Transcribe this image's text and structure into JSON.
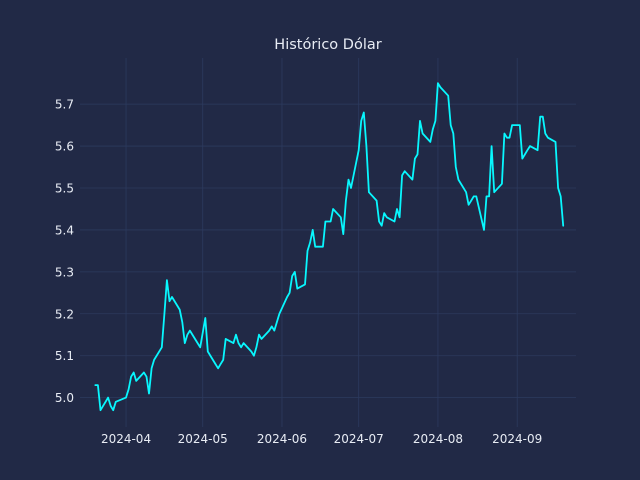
{
  "chart_data": {
    "type": "line",
    "title": "Histórico Dólar",
    "xlabel": "",
    "ylabel": "",
    "grid": true,
    "xlim": [
      "2024-03-14",
      "2024-09-24"
    ],
    "ylim": [
      4.93,
      5.81
    ],
    "x_ticks": [
      "2024-04-01",
      "2024-05-01",
      "2024-06-01",
      "2024-07-01",
      "2024-08-01",
      "2024-09-01"
    ],
    "x_tick_labels": [
      "2024-04",
      "2024-05",
      "2024-06",
      "2024-07",
      "2024-08",
      "2024-09"
    ],
    "y_ticks": [
      5.0,
      5.1,
      5.2,
      5.3,
      5.4,
      5.5,
      5.6,
      5.7
    ],
    "y_tick_labels": [
      "5.0",
      "5.1",
      "5.2",
      "5.3",
      "5.4",
      "5.5",
      "5.6",
      "5.7"
    ],
    "colors": {
      "background": "#212946",
      "line": "#08F7FE",
      "grid": "#2C3A5E",
      "text": "#E8ECF4"
    },
    "series": [
      {
        "x": [
          "2024-03-20",
          "2024-03-21",
          "2024-03-22",
          "2024-03-25",
          "2024-03-26",
          "2024-03-27",
          "2024-03-28",
          "2024-04-01",
          "2024-04-02",
          "2024-04-03",
          "2024-04-04",
          "2024-04-05",
          "2024-04-08",
          "2024-04-09",
          "2024-04-10",
          "2024-04-11",
          "2024-04-12",
          "2024-04-15",
          "2024-04-16",
          "2024-04-17",
          "2024-04-18",
          "2024-04-19",
          "2024-04-22",
          "2024-04-23",
          "2024-04-24",
          "2024-04-25",
          "2024-04-26",
          "2024-04-29",
          "2024-04-30",
          "2024-05-02",
          "2024-05-03",
          "2024-05-06",
          "2024-05-07",
          "2024-05-08",
          "2024-05-09",
          "2024-05-10",
          "2024-05-13",
          "2024-05-14",
          "2024-05-15",
          "2024-05-16",
          "2024-05-17",
          "2024-05-20",
          "2024-05-21",
          "2024-05-22",
          "2024-05-23",
          "2024-05-24",
          "2024-05-27",
          "2024-05-28",
          "2024-05-29",
          "2024-05-31",
          "2024-06-03",
          "2024-06-04",
          "2024-06-05",
          "2024-06-06",
          "2024-06-07",
          "2024-06-10",
          "2024-06-11",
          "2024-06-12",
          "2024-06-13",
          "2024-06-14",
          "2024-06-17",
          "2024-06-18",
          "2024-06-19",
          "2024-06-20",
          "2024-06-21",
          "2024-06-24",
          "2024-06-25",
          "2024-06-26",
          "2024-06-27",
          "2024-06-28",
          "2024-07-01",
          "2024-07-02",
          "2024-07-03",
          "2024-07-04",
          "2024-07-05",
          "2024-07-08",
          "2024-07-09",
          "2024-07-10",
          "2024-07-11",
          "2024-07-12",
          "2024-07-15",
          "2024-07-16",
          "2024-07-17",
          "2024-07-18",
          "2024-07-19",
          "2024-07-22",
          "2024-07-23",
          "2024-07-24",
          "2024-07-25",
          "2024-07-26",
          "2024-07-29",
          "2024-07-30",
          "2024-07-31",
          "2024-08-01",
          "2024-08-02",
          "2024-08-05",
          "2024-08-06",
          "2024-08-07",
          "2024-08-08",
          "2024-08-09",
          "2024-08-12",
          "2024-08-13",
          "2024-08-14",
          "2024-08-15",
          "2024-08-16",
          "2024-08-19",
          "2024-08-20",
          "2024-08-21",
          "2024-08-22",
          "2024-08-23",
          "2024-08-26",
          "2024-08-27",
          "2024-08-28",
          "2024-08-29",
          "2024-08-30",
          "2024-09-02",
          "2024-09-03",
          "2024-09-04",
          "2024-09-05",
          "2024-09-06",
          "2024-09-09",
          "2024-09-10",
          "2024-09-11",
          "2024-09-12",
          "2024-09-13",
          "2024-09-16",
          "2024-09-17",
          "2024-09-18",
          "2024-09-19"
        ],
        "y": [
          5.03,
          5.03,
          4.97,
          5.0,
          4.98,
          4.97,
          4.99,
          5.0,
          5.02,
          5.05,
          5.06,
          5.04,
          5.06,
          5.05,
          5.01,
          5.07,
          5.09,
          5.12,
          5.2,
          5.28,
          5.23,
          5.24,
          5.21,
          5.18,
          5.13,
          5.15,
          5.16,
          5.13,
          5.12,
          5.19,
          5.11,
          5.08,
          5.07,
          5.08,
          5.09,
          5.14,
          5.13,
          5.15,
          5.13,
          5.12,
          5.13,
          5.11,
          5.1,
          5.12,
          5.15,
          5.14,
          5.16,
          5.17,
          5.16,
          5.2,
          5.24,
          5.25,
          5.29,
          5.3,
          5.26,
          5.27,
          5.35,
          5.37,
          5.4,
          5.36,
          5.36,
          5.42,
          5.42,
          5.42,
          5.45,
          5.43,
          5.39,
          5.47,
          5.52,
          5.5,
          5.59,
          5.66,
          5.68,
          5.6,
          5.49,
          5.47,
          5.42,
          5.41,
          5.44,
          5.43,
          5.42,
          5.45,
          5.43,
          5.53,
          5.54,
          5.52,
          5.57,
          5.58,
          5.66,
          5.63,
          5.61,
          5.64,
          5.66,
          5.75,
          5.74,
          5.72,
          5.65,
          5.63,
          5.55,
          5.52,
          5.49,
          5.46,
          5.47,
          5.48,
          5.48,
          5.4,
          5.48,
          5.48,
          5.6,
          5.49,
          5.51,
          5.63,
          5.62,
          5.62,
          5.65,
          5.65,
          5.57,
          5.58,
          5.59,
          5.6,
          5.59,
          5.67,
          5.67,
          5.63,
          5.62,
          5.61,
          5.5,
          5.48,
          5.41
        ]
      }
    ]
  }
}
